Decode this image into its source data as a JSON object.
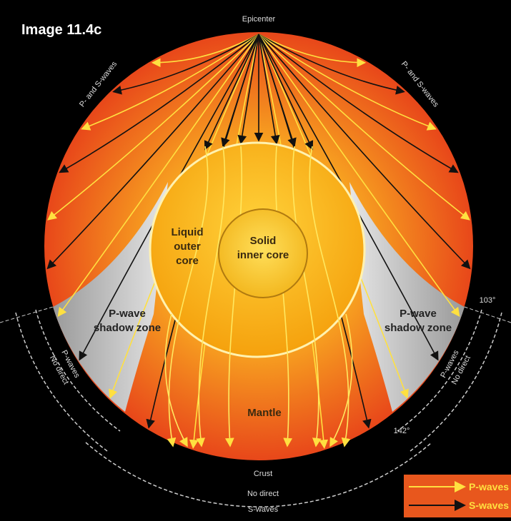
{
  "header": {
    "title": "Image 11.4c"
  },
  "labels": {
    "epicenter": "Epicenter",
    "waves_left": "P- and S-waves",
    "waves_right": "P- and S-waves",
    "outer_core": [
      "Liquid",
      "outer",
      "core"
    ],
    "inner_core": [
      "Solid",
      "inner core"
    ],
    "shadow_left": [
      "P-wave",
      "shadow zone"
    ],
    "shadow_right": [
      "P-wave",
      "shadow zone"
    ],
    "mantle": "Mantle",
    "angle_top": "103°",
    "angle_bottom": "142°",
    "crust": "Crust",
    "arc_left": [
      "No direct",
      "P-waves"
    ],
    "arc_right": [
      "No direct",
      "P-waves"
    ],
    "arc_bottom": [
      "No direct",
      "S-waves"
    ]
  },
  "legend": {
    "items": [
      {
        "label": "P-waves"
      },
      {
        "label": "S-waves"
      }
    ]
  }
}
